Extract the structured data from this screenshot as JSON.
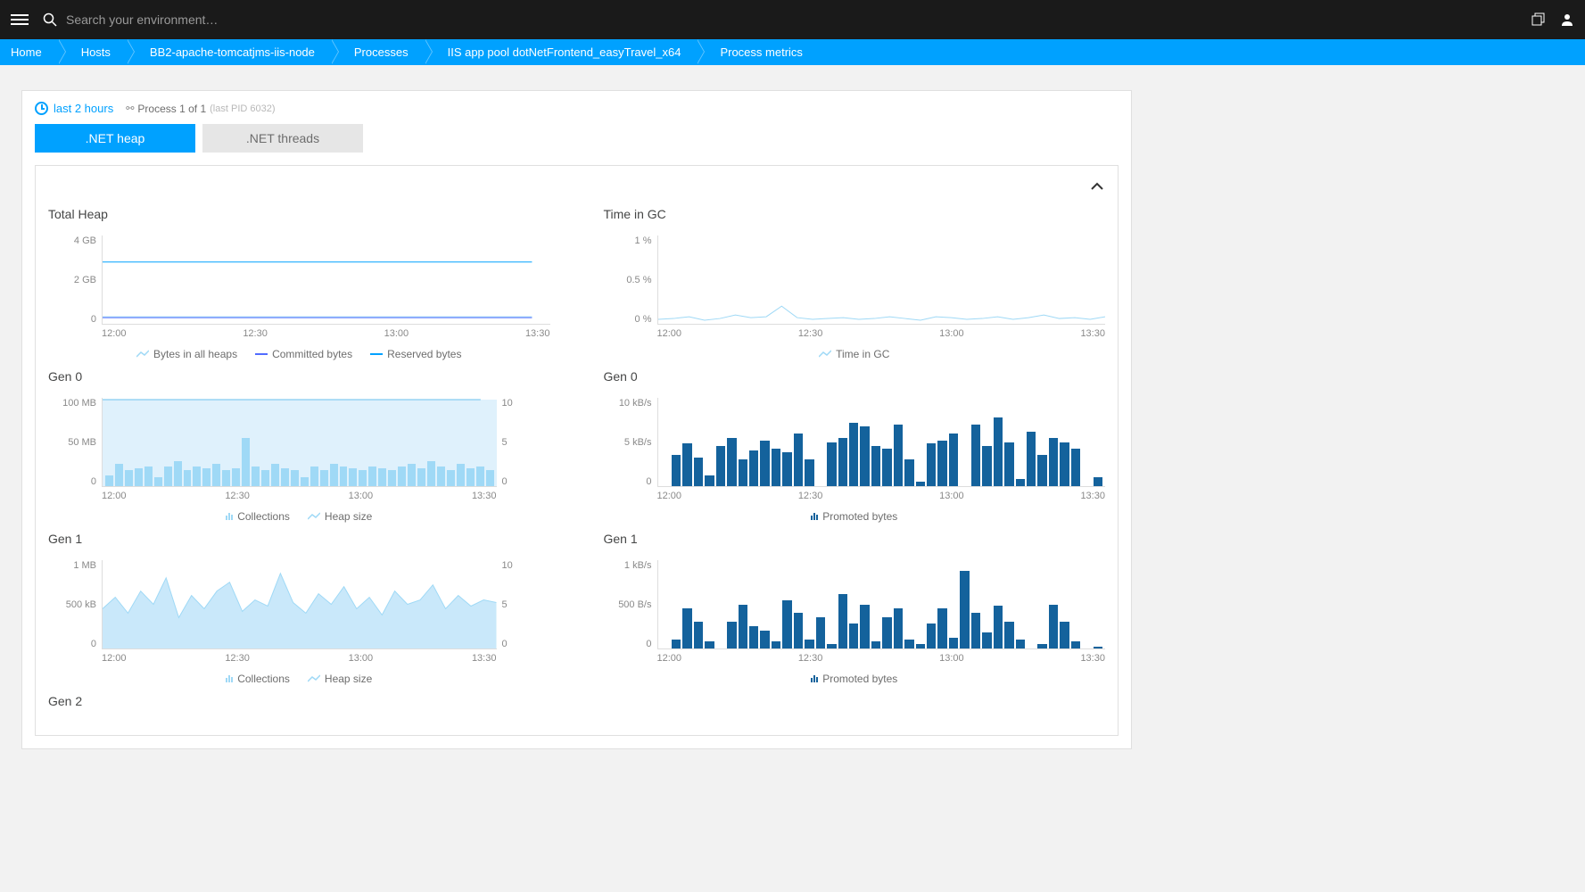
{
  "header": {
    "search_placeholder": "Search your environment…"
  },
  "breadcrumb": [
    "Home",
    "Hosts",
    "BB2-apache-tomcatjms-iis-node",
    "Processes",
    "IIS app pool dotNetFrontend_easyTravel_x64",
    "Process metrics"
  ],
  "toolbar": {
    "timeframe": "last 2 hours",
    "process_count": "Process 1 of 1",
    "process_pid": "(last PID 6032)"
  },
  "tabs": [
    ".NET heap",
    ".NET threads"
  ],
  "active_tab": 0,
  "colors": {
    "accent": "#00a1ff",
    "light_blue": "#9fd9f6",
    "area_fill": "#c9e8fa",
    "dark_blue": "#14629c",
    "text": "#454646",
    "muted": "#898989"
  },
  "x_ticks": [
    "12:00",
    "12:30",
    "13:00",
    "13:30"
  ],
  "charts": {
    "total_heap": {
      "title": "Total Heap",
      "y_left": [
        "4 GB",
        "2 GB",
        "0"
      ],
      "type": "line",
      "series": [
        {
          "name": "Bytes in all heaps",
          "color": "#9fd9f6",
          "y": 92
        },
        {
          "name": "Committed bytes",
          "color": "#526cff",
          "y": 93
        },
        {
          "name": "Reserved bytes",
          "color": "#00a1ff",
          "y": 30
        }
      ],
      "legend": [
        {
          "label": "Bytes in all heaps",
          "icon": "line-up",
          "color": "#9fd9f6"
        },
        {
          "label": "Committed bytes",
          "icon": "line",
          "color": "#526cff"
        },
        {
          "label": "Reserved bytes",
          "icon": "line",
          "color": "#00a1ff"
        }
      ]
    },
    "time_gc": {
      "title": "Time in GC",
      "y_left": [
        "1 %",
        "0.5 %",
        "0 %"
      ],
      "type": "wavy-line",
      "line_color": "#9fd9f6",
      "points": [
        95,
        94,
        92,
        96,
        94,
        90,
        93,
        92,
        80,
        93,
        95,
        94,
        93,
        95,
        94,
        92,
        94,
        96,
        92,
        93,
        95,
        94,
        92,
        95,
        93,
        90,
        94,
        93,
        95,
        92
      ],
      "legend": [
        {
          "label": "Time in GC",
          "icon": "line-up",
          "color": "#9fd9f6"
        }
      ]
    },
    "gen0_left": {
      "title": "Gen 0",
      "y_left": [
        "100 MB",
        "50 MB",
        "0"
      ],
      "y_right": [
        "10",
        "5",
        "0"
      ],
      "type": "area-bars",
      "area_color": "#c9e8fa",
      "area_y": 2,
      "bar_color": "#9fd9f6",
      "bars": [
        12,
        25,
        18,
        20,
        22,
        10,
        22,
        28,
        18,
        22,
        20,
        25,
        18,
        20,
        55,
        22,
        18,
        25,
        20,
        18,
        10,
        22,
        18,
        25,
        22,
        20,
        18,
        22,
        20,
        18,
        22,
        25,
        20,
        28,
        22,
        18,
        25,
        20,
        22,
        18
      ],
      "legend": [
        {
          "label": "Collections",
          "icon": "bars",
          "color": "#9fd9f6"
        },
        {
          "label": "Heap size",
          "icon": "line-up",
          "color": "#9fd9f6"
        }
      ]
    },
    "gen0_right": {
      "title": "Gen 0",
      "y_left": [
        "10 kB/s",
        "5 kB/s",
        "0"
      ],
      "type": "bars",
      "bar_color": "#14629c",
      "bars": [
        0,
        35,
        48,
        32,
        12,
        45,
        55,
        30,
        40,
        52,
        42,
        38,
        60,
        30,
        0,
        50,
        55,
        72,
        68,
        45,
        42,
        70,
        30,
        5,
        48,
        52,
        60,
        0,
        70,
        45,
        78,
        50,
        8,
        62,
        35,
        55,
        50,
        42,
        0,
        10
      ],
      "legend": [
        {
          "label": "Promoted bytes",
          "icon": "bars",
          "color": "#14629c"
        }
      ]
    },
    "gen1_left": {
      "title": "Gen 1",
      "y_left": [
        "1 MB",
        "500 kB",
        "0"
      ],
      "y_right": [
        "10",
        "5",
        "0"
      ],
      "type": "area-bars-wavy",
      "area_color": "#c9e8fa",
      "line_color": "#9fd9f6",
      "points": [
        55,
        42,
        60,
        35,
        50,
        20,
        65,
        40,
        55,
        35,
        25,
        58,
        45,
        52,
        15,
        48,
        60,
        38,
        50,
        30,
        55,
        42,
        62,
        35,
        50,
        45,
        28,
        55,
        40,
        52,
        45,
        48
      ],
      "bar_color": "#9fd9f6",
      "bars": [
        10,
        8,
        18,
        15,
        20,
        12,
        22,
        18,
        10,
        20,
        15,
        22,
        18,
        12,
        20,
        15,
        18,
        22,
        10,
        15,
        18,
        20,
        22,
        15,
        18,
        10,
        20,
        15,
        22,
        18,
        12,
        20,
        15,
        18,
        22,
        10,
        20,
        15,
        18,
        22
      ],
      "legend": [
        {
          "label": "Collections",
          "icon": "bars",
          "color": "#9fd9f6"
        },
        {
          "label": "Heap size",
          "icon": "line-up",
          "color": "#9fd9f6"
        }
      ]
    },
    "gen1_right": {
      "title": "Gen 1",
      "y_left": [
        "1 kB/s",
        "500 B/s",
        "0"
      ],
      "type": "bars",
      "bar_color": "#14629c",
      "bars": [
        0,
        10,
        45,
        30,
        8,
        0,
        30,
        50,
        25,
        20,
        8,
        55,
        40,
        10,
        35,
        5,
        62,
        28,
        50,
        8,
        35,
        45,
        10,
        5,
        28,
        45,
        12,
        88,
        40,
        18,
        48,
        30,
        10,
        0,
        5,
        50,
        30,
        8,
        0,
        2
      ],
      "legend": [
        {
          "label": "Promoted bytes",
          "icon": "bars",
          "color": "#14629c"
        }
      ]
    },
    "gen2": {
      "title": "Gen 2"
    }
  }
}
